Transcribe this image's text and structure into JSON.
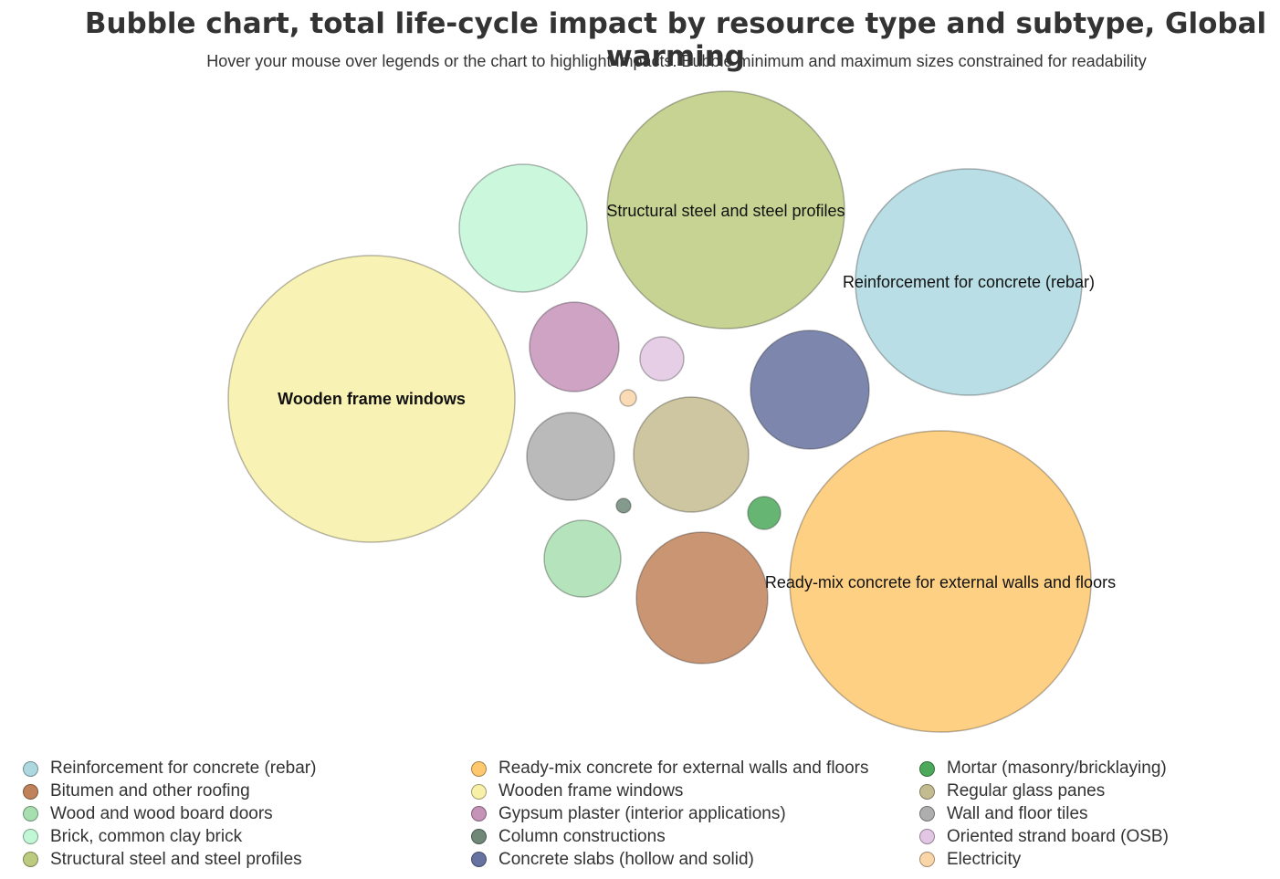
{
  "title": "Bubble chart, total life-cycle impact by resource type and subtype, Global warming",
  "subtitle": "Hover your mouse over legends or the chart to highlight impacts. Bubble minimum and maximum sizes constrained for readability",
  "chart_data": {
    "type": "bubble",
    "title": "Bubble chart, total life-cycle impact by resource type and subtype, Global warming",
    "series": [
      {
        "name": "Reinforcement for concrete (rebar)",
        "color": "#add8e0",
        "labeled": true
      },
      {
        "name": "Bitumen and other roofing",
        "color": "#c0825a",
        "labeled": false
      },
      {
        "name": "Wood and wood board doors",
        "color": "#a8dfb0",
        "labeled": false
      },
      {
        "name": "Brick, common clay brick",
        "color": "#c2f7d6",
        "labeled": false
      },
      {
        "name": "Structural steel and steel profiles",
        "color": "#bccb7f",
        "labeled": true
      },
      {
        "name": "Ready-mix concrete for external walls and floors",
        "color": "#fec86e",
        "labeled": true
      },
      {
        "name": "Wooden frame windows",
        "color": "#f8f0a8",
        "labeled": true
      },
      {
        "name": "Gypsum plaster (interior applications)",
        "color": "#c593b8",
        "labeled": false
      },
      {
        "name": "Column constructions",
        "color": "#6f8878",
        "labeled": false
      },
      {
        "name": "Concrete slabs (hollow and solid)",
        "color": "#66729f",
        "labeled": false
      },
      {
        "name": "Mortar (masonry/bricklaying)",
        "color": "#4ca85a",
        "labeled": false
      },
      {
        "name": "Regular glass panes",
        "color": "#c4bc91",
        "labeled": false
      },
      {
        "name": "Wall and floor tiles",
        "color": "#aeaeae",
        "labeled": false
      },
      {
        "name": "Oriented strand board (OSB)",
        "color": "#e3c6e3",
        "labeled": false
      },
      {
        "name": "Electricity",
        "color": "#fad5a8",
        "labeled": false
      }
    ]
  },
  "legend": {
    "columns": [
      [
        {
          "label": "Reinforcement for concrete (rebar)",
          "color": "#add8e0"
        },
        {
          "label": "Bitumen and other roofing",
          "color": "#c0825a"
        },
        {
          "label": "Wood and wood board doors",
          "color": "#a8dfb0"
        },
        {
          "label": "Brick, common clay brick",
          "color": "#c2f7d6"
        },
        {
          "label": "Structural steel and steel profiles",
          "color": "#bccb7f"
        }
      ],
      [
        {
          "label": "Ready-mix concrete for external walls and floors",
          "color": "#fec86e"
        },
        {
          "label": "Wooden frame windows",
          "color": "#f8f0a8"
        },
        {
          "label": "Gypsum plaster (interior applications)",
          "color": "#c593b8"
        },
        {
          "label": "Column constructions",
          "color": "#6f8878"
        },
        {
          "label": "Concrete slabs (hollow and solid)",
          "color": "#66729f"
        }
      ],
      [
        {
          "label": "Mortar (masonry/bricklaying)",
          "color": "#4ca85a"
        },
        {
          "label": "Regular glass panes",
          "color": "#c4bc91"
        },
        {
          "label": "Wall and floor tiles",
          "color": "#aeaeae"
        },
        {
          "label": "Oriented strand board (OSB)",
          "color": "#e3c6e3"
        },
        {
          "label": "Electricity",
          "color": "#fad5a8"
        }
      ]
    ]
  }
}
